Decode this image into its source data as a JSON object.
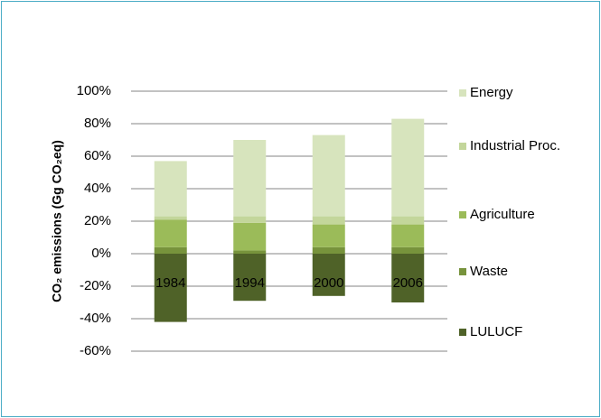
{
  "chart_data": {
    "type": "stacked_bar",
    "y_label": "CO₂ emissions (Gg CO₂eq)",
    "categories": [
      "1984",
      "1994",
      "2000",
      "2006"
    ],
    "series": [
      {
        "name": "Energy",
        "color": "#d7e4bd",
        "values": [
          34,
          47,
          50,
          60
        ]
      },
      {
        "name": "Industrial Proc.",
        "color": "#c3d69b",
        "values": [
          2,
          4,
          5,
          5
        ]
      },
      {
        "name": "Agriculture",
        "color": "#9bbb59",
        "values": [
          17,
          17,
          14,
          14
        ]
      },
      {
        "name": "Waste",
        "color": "#77933c",
        "values": [
          4,
          2,
          4,
          4
        ]
      },
      {
        "name": "LULUCF",
        "color": "#4f6228",
        "values": [
          -42,
          -29,
          -26,
          -30
        ]
      }
    ],
    "ylim": [
      -60,
      100
    ],
    "yticks": [
      {
        "value": -60,
        "label": "-60%"
      },
      {
        "value": -40,
        "label": "-40%"
      },
      {
        "value": -20,
        "label": "-20%"
      },
      {
        "value": 0,
        "label": "0%"
      },
      {
        "value": 20,
        "label": "20%"
      },
      {
        "value": 40,
        "label": "40%"
      },
      {
        "value": 60,
        "label": "60%"
      },
      {
        "value": 80,
        "label": "80%"
      },
      {
        "value": 100,
        "label": "100%"
      }
    ],
    "grid": true
  }
}
